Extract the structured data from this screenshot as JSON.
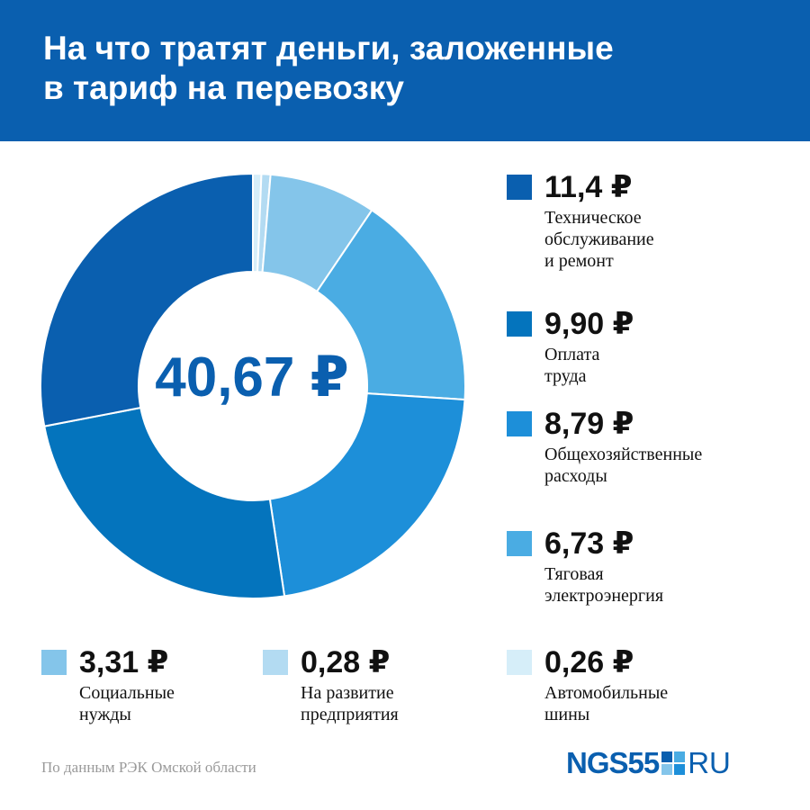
{
  "header": {
    "title_line1": "На что тратят деньги, заложенные",
    "title_line2": "в тариф на перевозку",
    "background": "#0a5faf"
  },
  "center_total": "40,67 ₽",
  "legend": [
    {
      "value": "11,4 ₽",
      "label": "Техническое\nобслуживание\nи ремонт",
      "color": "#0a5faf"
    },
    {
      "value": "9,90 ₽",
      "label": "Оплата труда",
      "color": "#0474bd"
    },
    {
      "value": "8,79 ₽",
      "label": "Общехозяйственные\nрасходы",
      "color": "#1d8fd9"
    },
    {
      "value": "6,73 ₽",
      "label": "Тяговая\nэлектроэнергия",
      "color": "#4aace3"
    },
    {
      "value": "3,31 ₽",
      "label": "Социальные\nнужды",
      "color": "#84c5ea"
    },
    {
      "value": "0,28 ₽",
      "label": "На развитие\nпредприятия",
      "color": "#b3dbf2"
    },
    {
      "value": "0,26 ₽",
      "label": "Автомобильные\nшины",
      "color": "#d6eef9"
    }
  ],
  "chart_data": {
    "type": "pie",
    "donut": true,
    "total": 40.67,
    "categories": [
      "Техническое обслуживание и ремонт",
      "Оплата труда",
      "Общехозяйственные расходы",
      "Тяговая электроэнергия",
      "Социальные нужды",
      "На развитие предприятия",
      "Автомобильные шины"
    ],
    "values": [
      11.4,
      9.9,
      8.79,
      6.73,
      3.31,
      0.28,
      0.26
    ],
    "colors": [
      "#0a5faf",
      "#0474bd",
      "#1d8fd9",
      "#4aace3",
      "#84c5ea",
      "#b3dbf2",
      "#d6eef9"
    ],
    "legend_position": "right-and-bottom"
  },
  "source": "По данным РЭК Омской области",
  "logo": {
    "left": "NGS55",
    "right": "RU",
    "mark_colors": [
      "#0a5faf",
      "#4aace3",
      "#84c5ea",
      "#1d8fd9"
    ]
  }
}
